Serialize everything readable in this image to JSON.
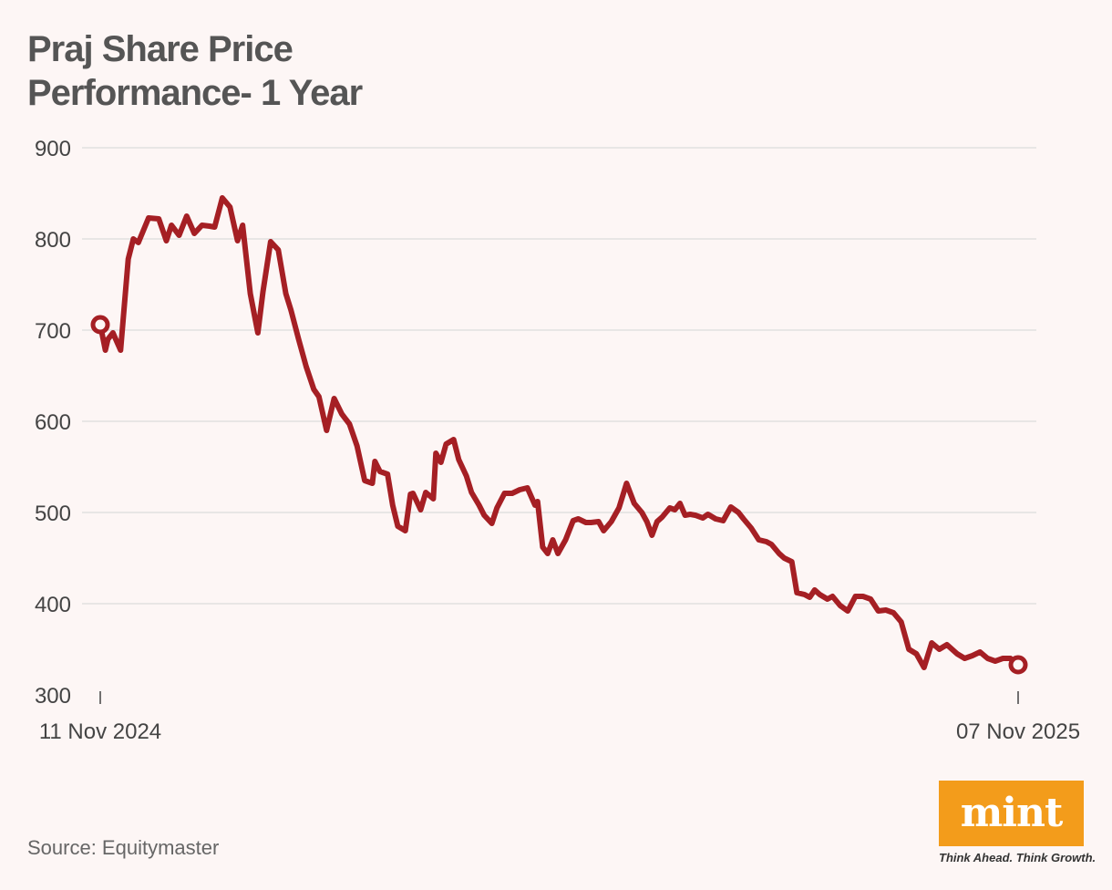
{
  "chart_data": {
    "type": "line",
    "title_lines": [
      "Praj Share Price",
      "Performance- 1 Year"
    ],
    "yticks": [
      300,
      400,
      500,
      600,
      700,
      800,
      900
    ],
    "ylim": [
      300,
      900
    ],
    "xtick_labels": [
      "11 Nov 2024",
      "07 Nov 2025"
    ],
    "grid": true,
    "line_color": "#a51f24",
    "series": [
      {
        "x": [
          "2024-11-11",
          "2024-11-13",
          "2024-11-14",
          "2024-11-16",
          "2024-11-19",
          "2024-11-22",
          "2024-11-24",
          "2024-11-26",
          "2024-11-30",
          "2024-12-04",
          "2024-12-07",
          "2024-12-09",
          "2024-12-12",
          "2024-12-15",
          "2024-12-18",
          "2024-12-21",
          "2024-12-24",
          "2024-12-26",
          "2024-12-29",
          "2025-01-01",
          "2025-01-04",
          "2025-01-06",
          "2025-01-09",
          "2025-01-12",
          "2025-01-14",
          "2025-01-17",
          "2025-01-20",
          "2025-01-23",
          "2025-01-25",
          "2025-01-28",
          "2025-01-31",
          "2025-02-03",
          "2025-02-05",
          "2025-02-08",
          "2025-02-11",
          "2025-02-14",
          "2025-02-17",
          "2025-02-20",
          "2025-02-23",
          "2025-02-26",
          "2025-02-27",
          "2025-03-01",
          "2025-03-04",
          "2025-03-06",
          "2025-03-08",
          "2025-03-11",
          "2025-03-13",
          "2025-03-14",
          "2025-03-17",
          "2025-03-19",
          "2025-03-22",
          "2025-03-23",
          "2025-03-25",
          "2025-03-27",
          "2025-03-30",
          "2025-04-01",
          "2025-04-04",
          "2025-04-06",
          "2025-04-09",
          "2025-04-11",
          "2025-04-14",
          "2025-04-16",
          "2025-04-19",
          "2025-04-22",
          "2025-04-25",
          "2025-04-28",
          "2025-05-01",
          "2025-05-02",
          "2025-05-04",
          "2025-05-06",
          "2025-05-08",
          "2025-05-10",
          "2025-05-13",
          "2025-05-16",
          "2025-05-18",
          "2025-05-21",
          "2025-05-23",
          "2025-05-26",
          "2025-05-28",
          "2025-05-31",
          "2025-06-03",
          "2025-06-06",
          "2025-06-09",
          "2025-06-12",
          "2025-06-14",
          "2025-06-16",
          "2025-06-18",
          "2025-06-20",
          "2025-06-23",
          "2025-06-25",
          "2025-06-27",
          "2025-06-29",
          "2025-07-01",
          "2025-07-03",
          "2025-07-06",
          "2025-07-08",
          "2025-07-11",
          "2025-07-14",
          "2025-07-17",
          "2025-07-20",
          "2025-07-22",
          "2025-07-25",
          "2025-07-28",
          "2025-07-31",
          "2025-08-02",
          "2025-08-05",
          "2025-08-07",
          "2025-08-10",
          "2025-08-12",
          "2025-08-15",
          "2025-08-17",
          "2025-08-19",
          "2025-08-21",
          "2025-08-24",
          "2025-08-26",
          "2025-08-29",
          "2025-09-01",
          "2025-09-04",
          "2025-09-07",
          "2025-09-10",
          "2025-09-13",
          "2025-09-16",
          "2025-09-19",
          "2025-09-22",
          "2025-09-25",
          "2025-09-28",
          "2025-10-01",
          "2025-10-04",
          "2025-10-07",
          "2025-10-10",
          "2025-10-12",
          "2025-10-14",
          "2025-10-17",
          "2025-10-20",
          "2025-10-23",
          "2025-10-26",
          "2025-10-29",
          "2025-11-01",
          "2025-11-04",
          "2025-11-07"
        ],
        "y": [
          706,
          678,
          690,
          697,
          678,
          778,
          800,
          796,
          823,
          822,
          798,
          815,
          804,
          825,
          806,
          815,
          814,
          813,
          845,
          835,
          798,
          815,
          740,
          697,
          742,
          797,
          788,
          740,
          722,
          690,
          660,
          635,
          627,
          590,
          625,
          608,
          597,
          573,
          535,
          532,
          556,
          545,
          542,
          508,
          485,
          480,
          520,
          521,
          503,
          522,
          515,
          565,
          555,
          575,
          580,
          558,
          540,
          522,
          508,
          497,
          488,
          505,
          521,
          521,
          525,
          527,
          508,
          512,
          462,
          455,
          470,
          455,
          470,
          491,
          493,
          489,
          489,
          490,
          480,
          490,
          505,
          532,
          510,
          500,
          490,
          475,
          490,
          495,
          505,
          503,
          510,
          497,
          498,
          497,
          494,
          498,
          493,
          491,
          506,
          500,
          493,
          483,
          470,
          468,
          465,
          455,
          450,
          446,
          412,
          410,
          407,
          415,
          410,
          405,
          408,
          398,
          392,
          408,
          408,
          405,
          392,
          393,
          390,
          380,
          350,
          345,
          330,
          357,
          350,
          355,
          350,
          345,
          340,
          343,
          347,
          340,
          337,
          340,
          340,
          333
        ]
      }
    ]
  },
  "source": "Source: Equitymaster",
  "logo": {
    "word": "mint",
    "tagline": "Think Ahead. Think Growth."
  }
}
